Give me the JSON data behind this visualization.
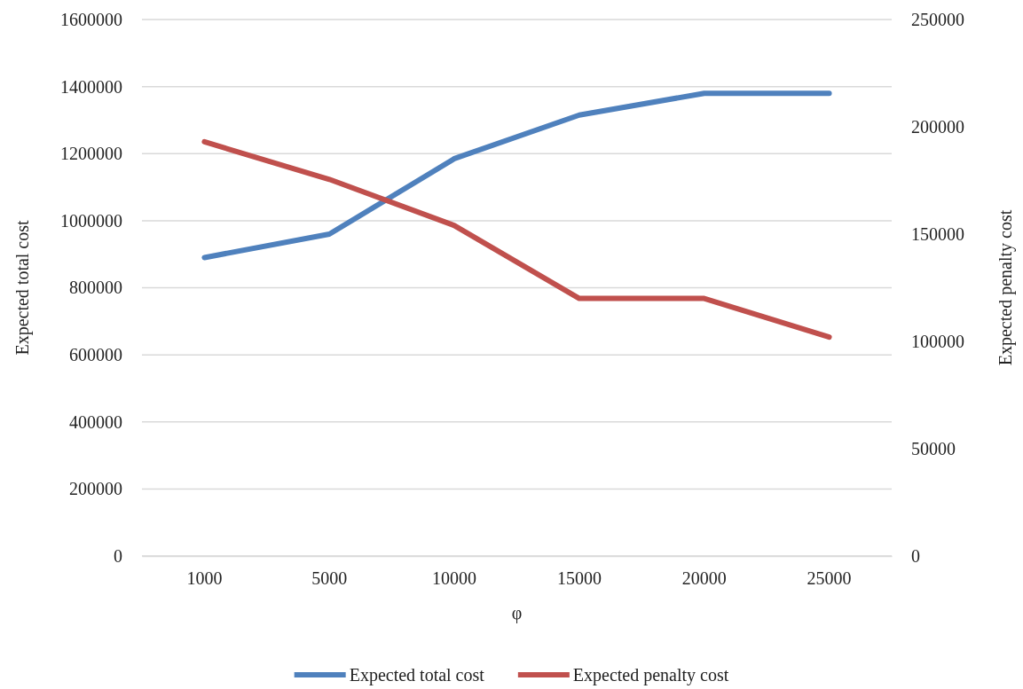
{
  "chart_data": {
    "type": "line",
    "xlabel": "φ",
    "ylabel": "Expected total cost",
    "y2label": "Expected penalty cost",
    "categories": [
      "1000",
      "5000",
      "10000",
      "15000",
      "20000",
      "25000"
    ],
    "series": [
      {
        "name": "Expected total cost",
        "color": "#4f81bd",
        "values": [
          890000,
          960000,
          1185000,
          1315000,
          1380000,
          1380000
        ]
      },
      {
        "name": "Expected penalty cost",
        "color": "#c0504d",
        "axis": "y2",
        "values": [
          193000,
          175500,
          154000,
          120000,
          120000,
          102000
        ]
      }
    ],
    "ylim": [
      0,
      1600000
    ],
    "yticks": [
      0,
      200000,
      400000,
      600000,
      800000,
      1000000,
      1200000,
      1400000,
      1600000
    ],
    "y2lim": [
      0,
      250000
    ],
    "y2ticks": [
      0,
      50000,
      100000,
      150000,
      200000,
      250000
    ],
    "grid": "y",
    "legend": "bottom",
    "marker": "none",
    "line_style": "solid"
  }
}
